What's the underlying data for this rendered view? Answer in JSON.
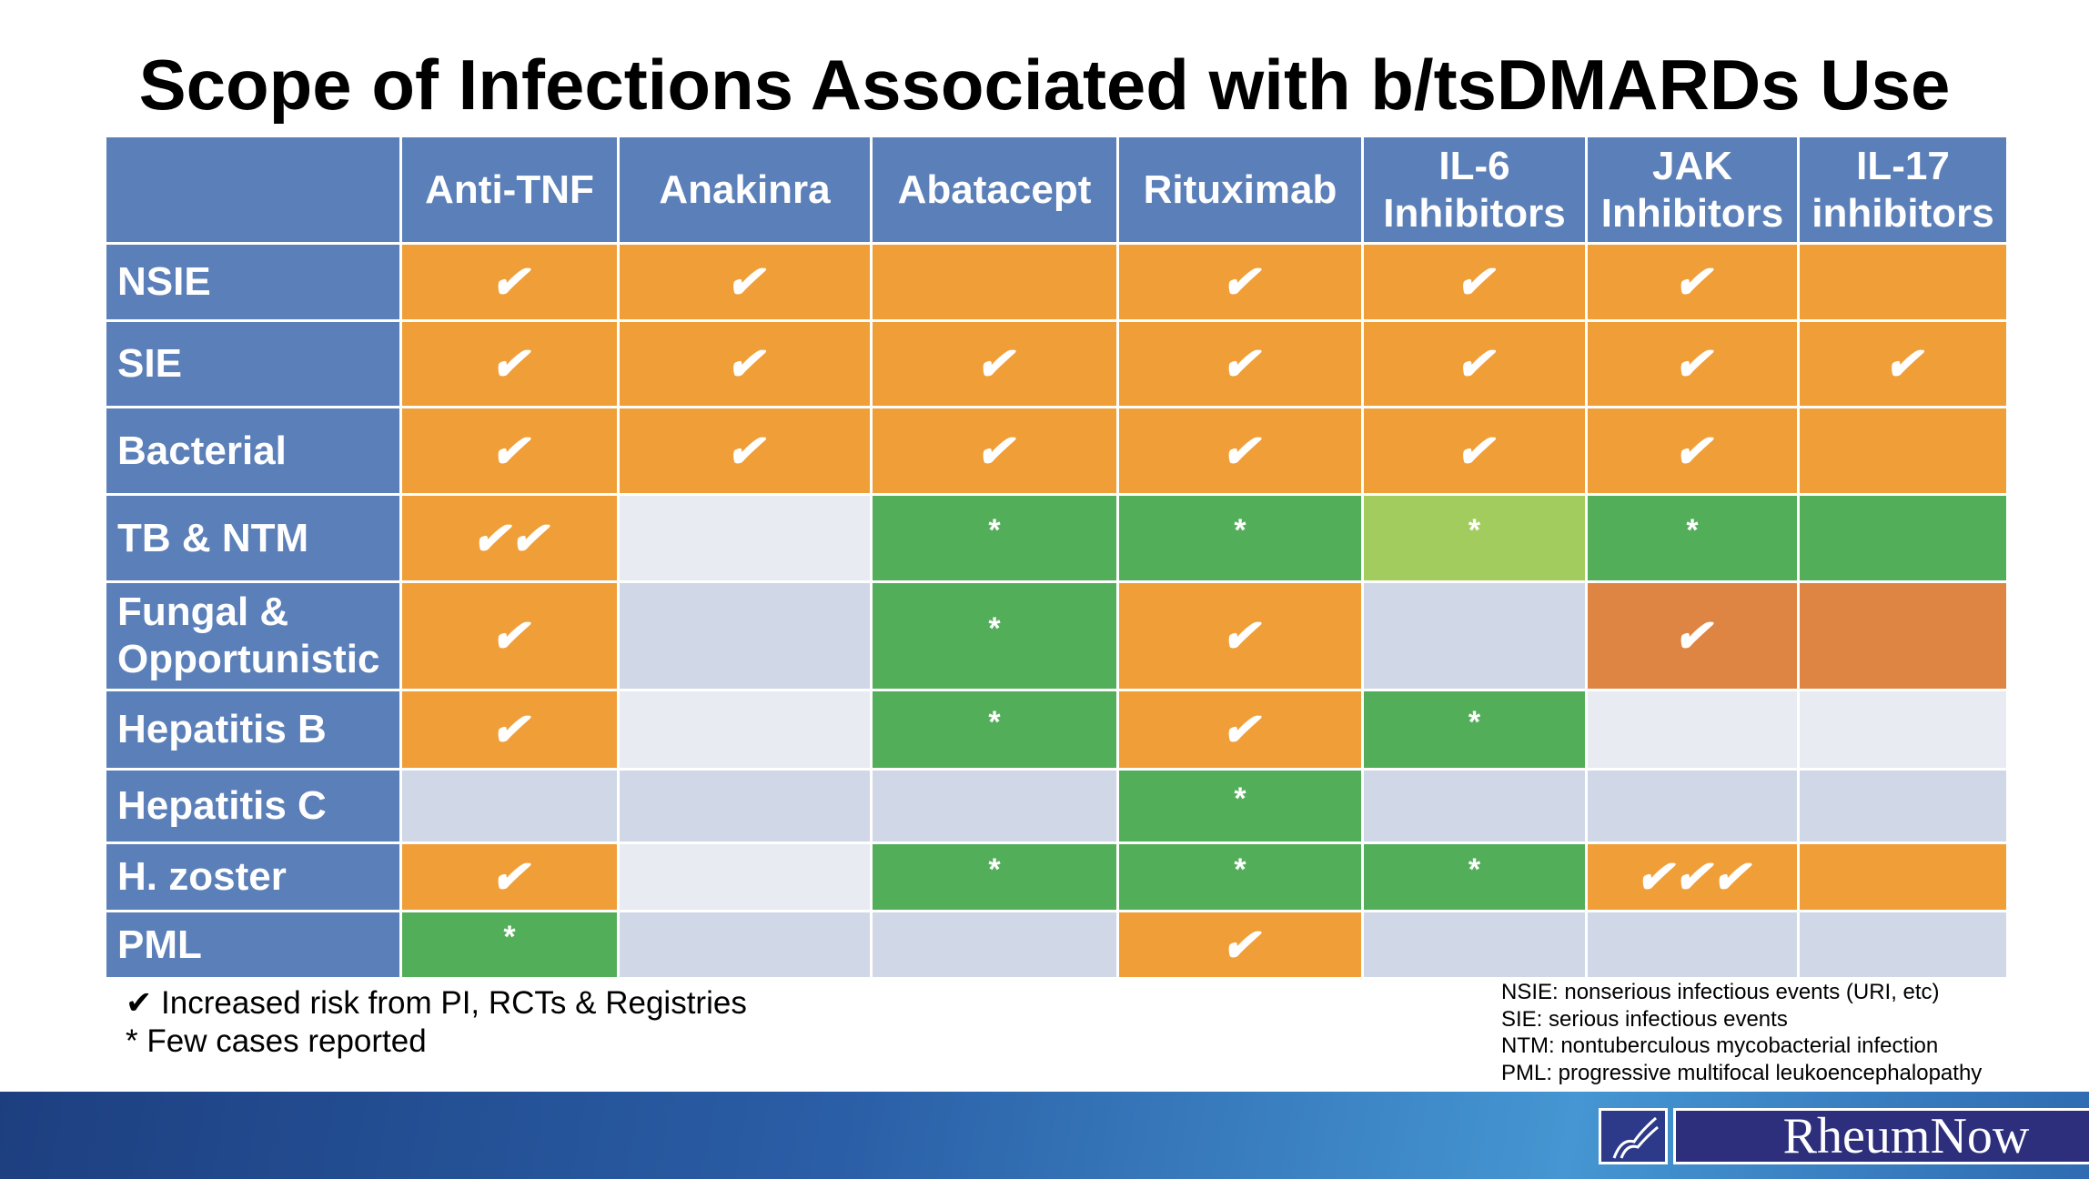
{
  "title": "Scope of Infections Associated with b/tsDMARDs Use",
  "columns": [
    "",
    "Anti-TNF",
    "Anakinra",
    "Abatacept",
    "Rituximab",
    "IL-6 Inhibitors",
    "JAK Inhibitors",
    "IL-17 inhibitors"
  ],
  "colors": {
    "header": "#5B7FB8",
    "orange": "#F09E38",
    "green": "#53AE5A",
    "light_green": "#A2CD5E",
    "dark_orange": "#DF8543",
    "light_gray": "#E8EBF2",
    "gray": "#D0D7E6"
  },
  "rows": [
    {
      "label": "NSIE",
      "cells": [
        [
          "✔",
          "o"
        ],
        [
          "✔",
          "o"
        ],
        [
          "",
          "o"
        ],
        [
          "✔",
          "o"
        ],
        [
          "✔",
          "o"
        ],
        [
          "✔",
          "o"
        ],
        [
          "",
          "o"
        ]
      ]
    },
    {
      "label": "SIE",
      "cells": [
        [
          "✔",
          "o"
        ],
        [
          "✔",
          "o"
        ],
        [
          "✔",
          "o"
        ],
        [
          "✔",
          "o"
        ],
        [
          "✔",
          "o"
        ],
        [
          "✔",
          "o"
        ],
        [
          "✔",
          "o"
        ]
      ]
    },
    {
      "label": "Bacterial",
      "cells": [
        [
          "✔",
          "o"
        ],
        [
          "✔",
          "o"
        ],
        [
          "✔",
          "o"
        ],
        [
          "✔",
          "o"
        ],
        [
          "✔",
          "o"
        ],
        [
          "✔",
          "o"
        ],
        [
          "",
          "o"
        ]
      ]
    },
    {
      "label": "TB & NTM",
      "cells": [
        [
          "✔✔",
          "o"
        ],
        [
          "",
          "l1"
        ],
        [
          "*",
          "g"
        ],
        [
          "*",
          "g"
        ],
        [
          "*",
          "lg"
        ],
        [
          "*",
          "g"
        ],
        [
          "",
          "g"
        ]
      ]
    },
    {
      "label": "Fungal & Opportunistic",
      "cells": [
        [
          "✔",
          "o"
        ],
        [
          "",
          "l2"
        ],
        [
          "*",
          "g"
        ],
        [
          "✔",
          "o"
        ],
        [
          "",
          "l2"
        ],
        [
          "✔",
          "do"
        ],
        [
          "",
          "do"
        ]
      ]
    },
    {
      "label": "Hepatitis B",
      "cells": [
        [
          "✔",
          "o"
        ],
        [
          "",
          "l1"
        ],
        [
          "*",
          "g"
        ],
        [
          "✔",
          "o"
        ],
        [
          "*",
          "g"
        ],
        [
          "",
          "l1"
        ],
        [
          "",
          "l1"
        ]
      ]
    },
    {
      "label": "Hepatitis C",
      "cells": [
        [
          "",
          "l2"
        ],
        [
          "",
          "l2"
        ],
        [
          "",
          "l2"
        ],
        [
          "*",
          "g"
        ],
        [
          "",
          "l2"
        ],
        [
          "",
          "l2"
        ],
        [
          "",
          "l2"
        ]
      ]
    },
    {
      "label": "H. zoster",
      "cells": [
        [
          "✔",
          "o"
        ],
        [
          "",
          "l1"
        ],
        [
          "*",
          "g"
        ],
        [
          "*",
          "g"
        ],
        [
          "*",
          "g"
        ],
        [
          "✔✔✔",
          "o"
        ],
        [
          "",
          "o"
        ]
      ]
    },
    {
      "label": "PML",
      "cells": [
        [
          "*",
          "g"
        ],
        [
          "",
          "l2"
        ],
        [
          "",
          "l2"
        ],
        [
          "✔",
          "o"
        ],
        [
          "",
          "l2"
        ],
        [
          "",
          "l2"
        ],
        [
          "",
          "l2"
        ]
      ]
    }
  ],
  "legend": [
    "✔ Increased risk from PI, RCTs & Registries",
    "* Few cases reported"
  ],
  "abbreviations": [
    "NSIE: nonserious infectious events (URI, etc)",
    "SIE: serious infectious events",
    "NTM: nontuberculous mycobacterial infection",
    "PML: progressive multifocal leukoencephalopathy"
  ],
  "logo": "RheumNow"
}
